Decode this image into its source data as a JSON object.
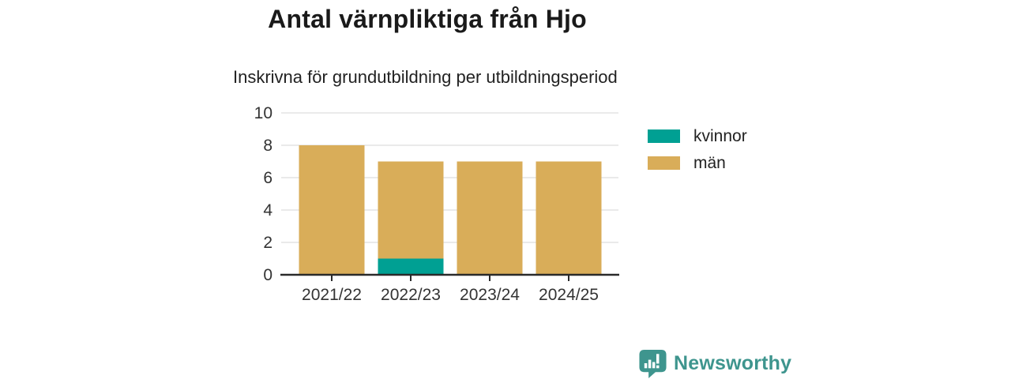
{
  "title": "Antal värnpliktiga från Hjo",
  "subtitle": "Inskrivna för grundutbildning per utbildningsperiod",
  "branding": {
    "name": "Newsworthy",
    "color": "#3e958e",
    "icon": "speech-bubble-bar-chart"
  },
  "colors": {
    "kvinnor": "#00a093",
    "man": "#d9ad59",
    "grid": "#e3e3e3",
    "axis": "#2a2a2a",
    "tick_text": "#333333"
  },
  "chart_data": {
    "type": "bar",
    "stacked": true,
    "title": "Antal värnpliktiga från Hjo",
    "subtitle": "Inskrivna för grundutbildning per utbildningsperiod",
    "categories": [
      "2021/22",
      "2022/23",
      "2023/24",
      "2024/25"
    ],
    "series": [
      {
        "name": "kvinnor",
        "color": "#00a093",
        "values": [
          0,
          1,
          0,
          0
        ]
      },
      {
        "name": "män",
        "color": "#d9ad59",
        "values": [
          8,
          6,
          7,
          7
        ]
      }
    ],
    "totals": [
      8,
      7,
      7,
      7
    ],
    "xlabel": "",
    "ylabel": "",
    "ylim": [
      0,
      10
    ],
    "yticks": [
      0,
      2,
      4,
      6,
      8,
      10
    ],
    "grid": true,
    "legend_position": "right"
  }
}
